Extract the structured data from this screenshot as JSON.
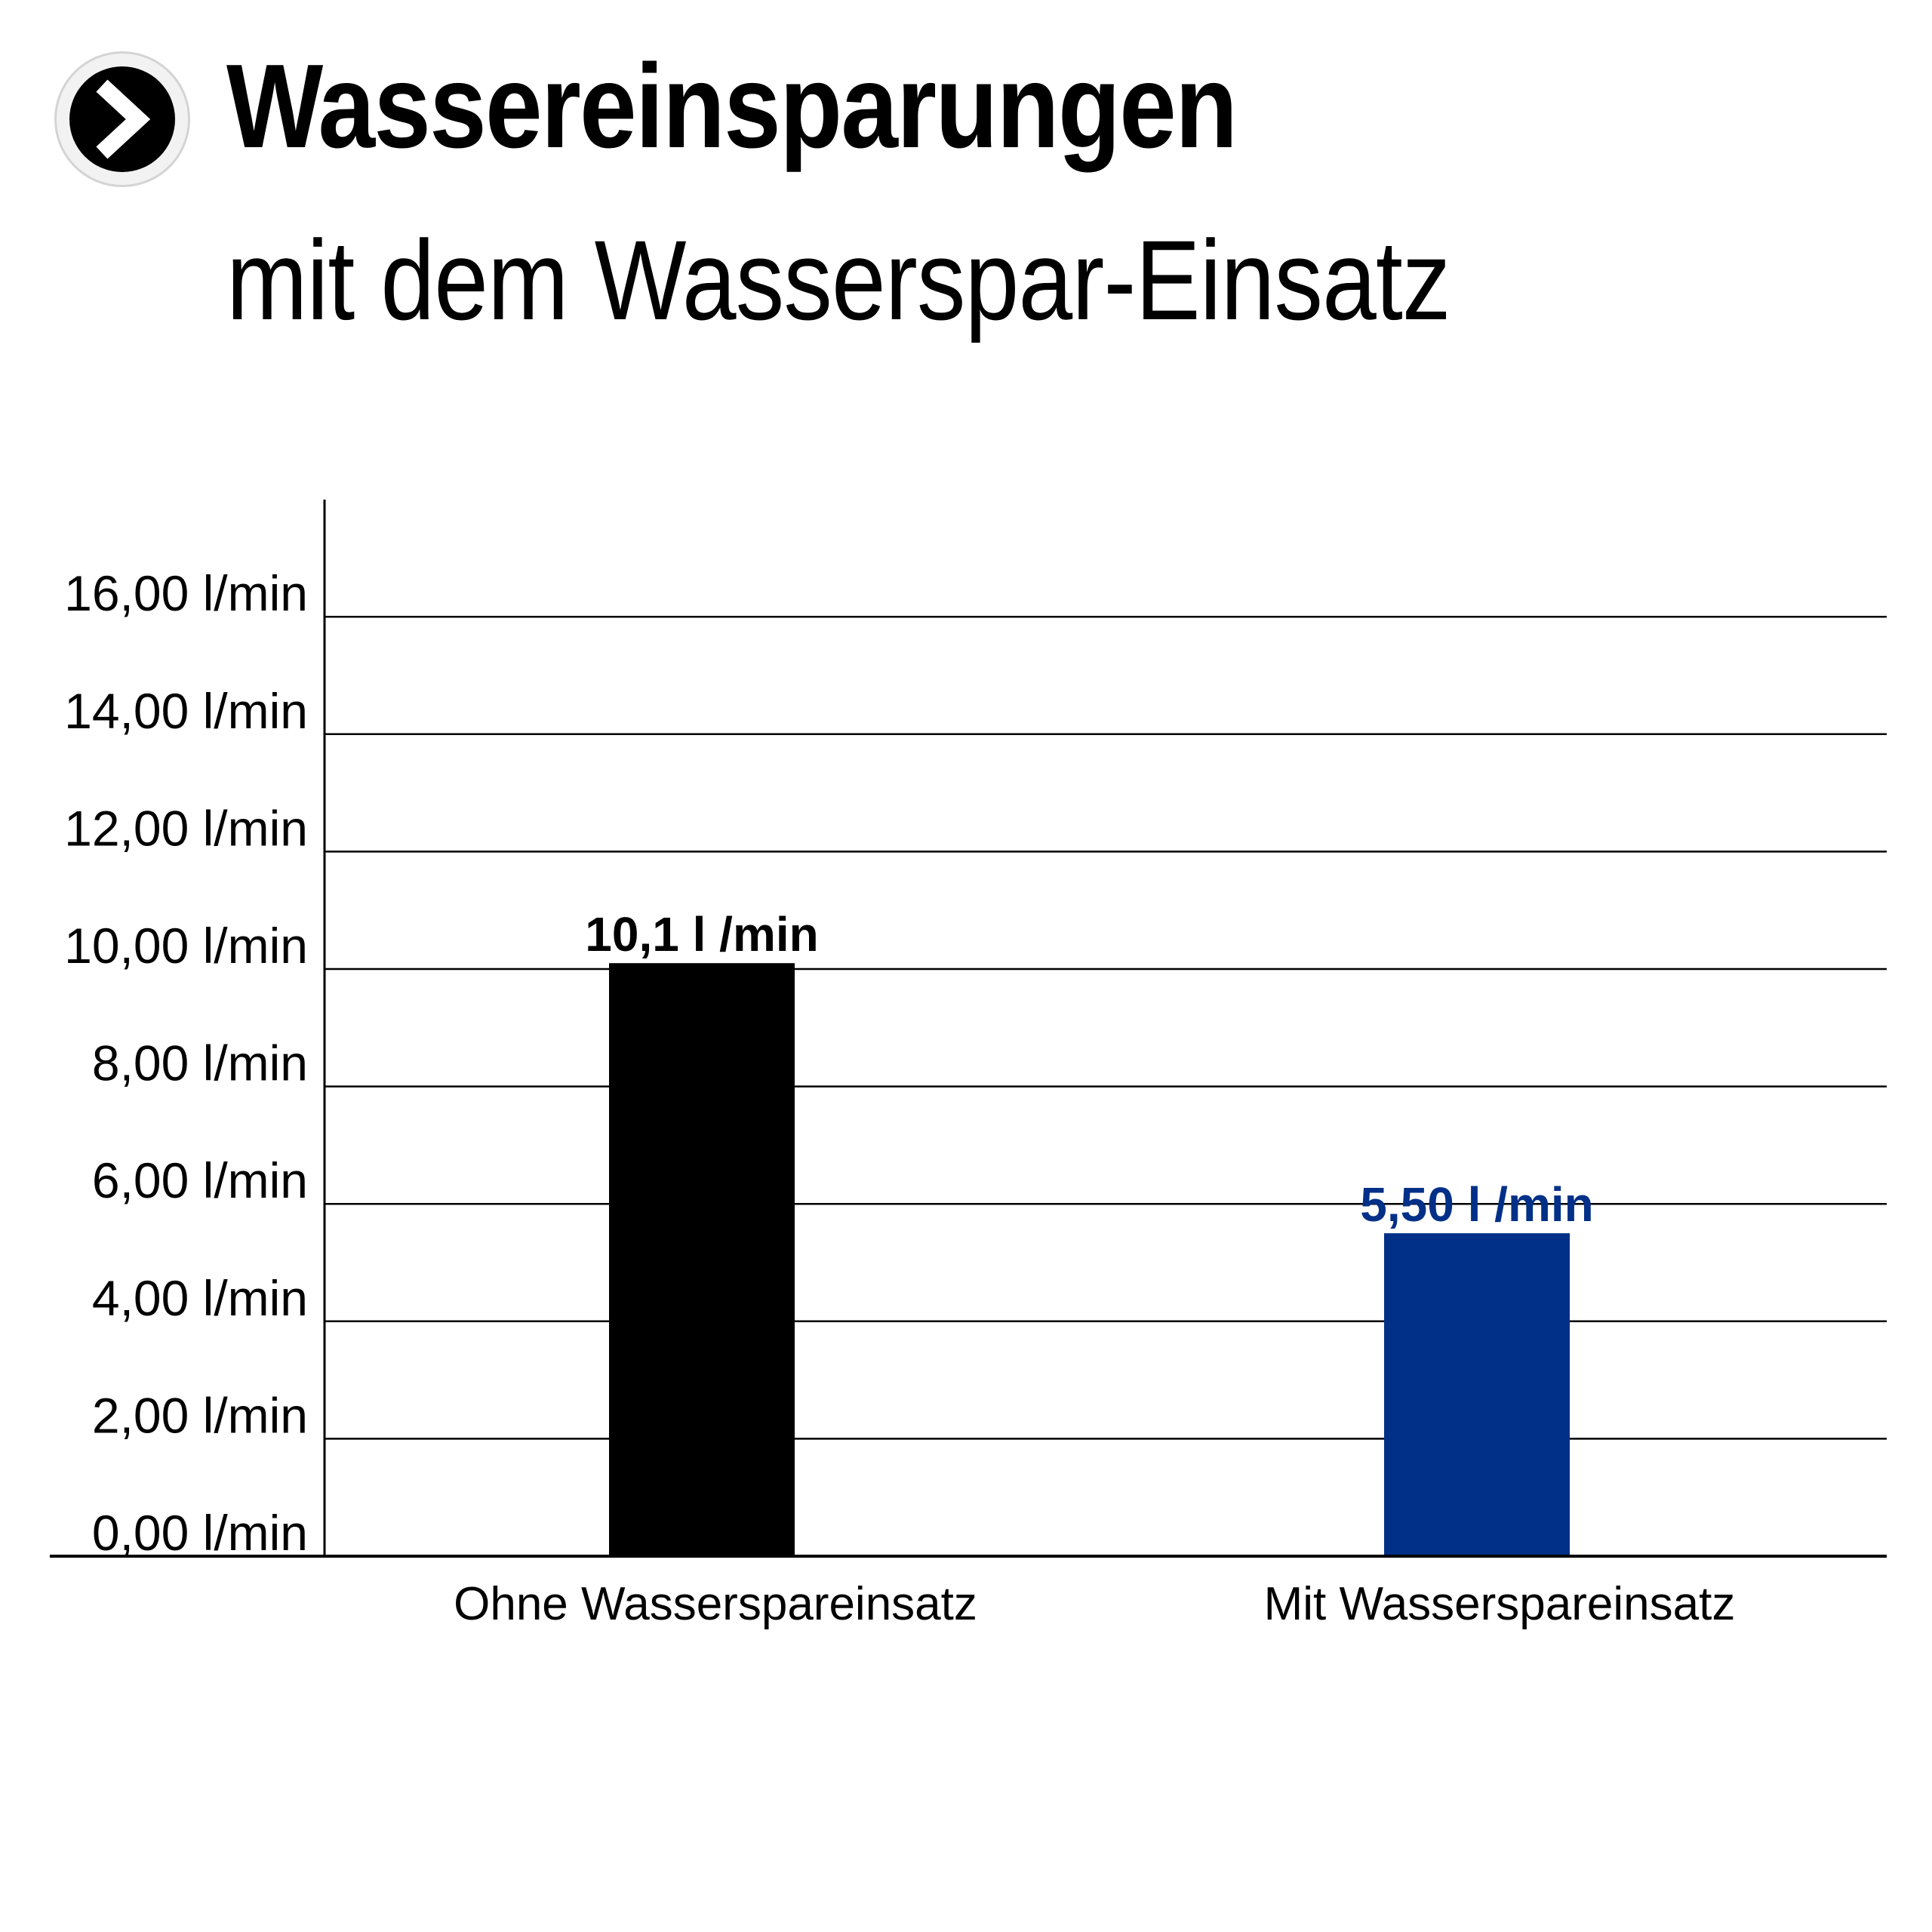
{
  "header": {
    "title": "Wassereinsparungen",
    "subtitle": "mit dem Wasserspar-Einsatz",
    "icon": "chevron-right-icon"
  },
  "chart_data": {
    "type": "bar",
    "categories": [
      "Ohne Wasserspareinsatz",
      "Mit Wasserspareinsatz"
    ],
    "values": [
      10.1,
      5.5
    ],
    "data_labels": [
      "10,1 l /min",
      "5,50 l /min"
    ],
    "bar_colors": [
      "#000000",
      "#003087"
    ],
    "y_ticks": [
      0,
      2,
      4,
      6,
      8,
      10,
      12,
      14,
      16
    ],
    "y_tick_labels": [
      "0,00 l/min",
      "2,00 l/min",
      "4,00 l/min",
      "6,00 l/min",
      "8,00 l/min",
      "10,00 l/min",
      "12,00 l/min",
      "14,00 l/min",
      "16,00 l/min"
    ],
    "ylim": [
      0,
      16
    ],
    "grid": true,
    "legend": "none",
    "title": "",
    "xlabel": "",
    "ylabel": ""
  }
}
